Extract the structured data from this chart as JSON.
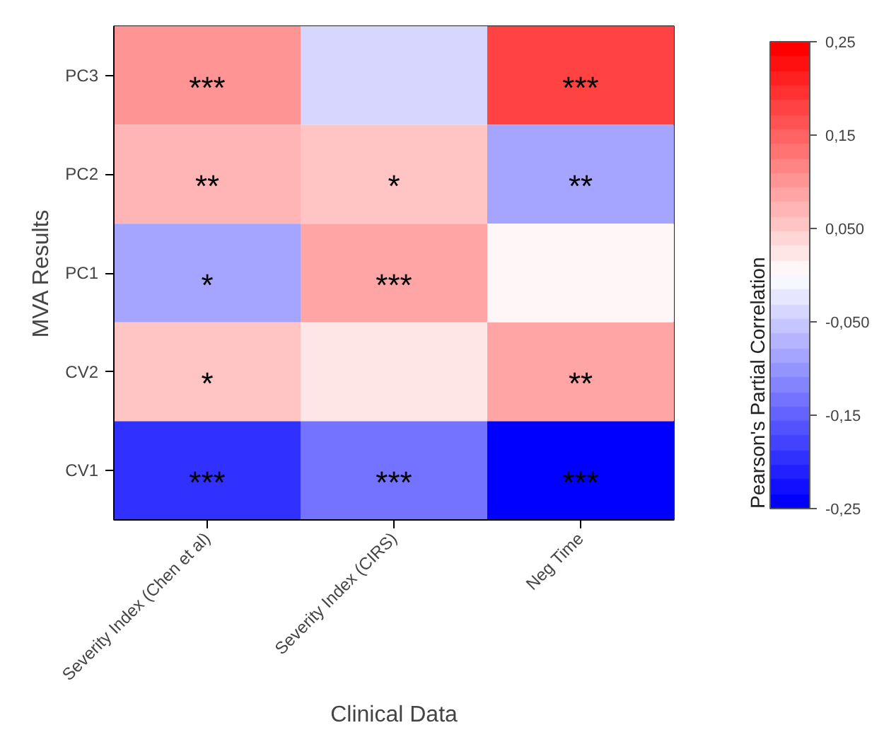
{
  "chart_data": {
    "type": "heatmap",
    "xlabel": "Clinical Data",
    "ylabel": "MVA Results",
    "clabel": "Pearson's Partial Correlation",
    "categories": [
      "Severity Index (Chen et al)",
      "Severity Index (CIRS)",
      "Neg Time"
    ],
    "y_categories": [
      "PC3",
      "PC2",
      "PC1",
      "CV2",
      "CV1"
    ],
    "cells": [
      [
        0.1,
        -0.04,
        0.18
      ],
      [
        0.07,
        0.05,
        -0.08
      ],
      [
        -0.08,
        0.08,
        0.01
      ],
      [
        0.05,
        0.02,
        0.08
      ],
      [
        -0.19,
        -0.13,
        -0.25
      ]
    ],
    "cell_labels": [
      [
        "***",
        null,
        "***"
      ],
      [
        "**",
        "*",
        "**"
      ],
      [
        "*",
        "***",
        null
      ],
      [
        "*",
        null,
        "**"
      ],
      [
        "***",
        "***",
        "***"
      ]
    ],
    "clim": [
      -0.25,
      0.25
    ],
    "cticks": [
      {
        "value": -0.25,
        "label": "-0,25"
      },
      {
        "value": -0.15,
        "label": "-0,15"
      },
      {
        "value": -0.05,
        "label": "-0,050"
      },
      {
        "value": 0.05,
        "label": "0,050"
      },
      {
        "value": 0.15,
        "label": "0,15"
      },
      {
        "value": 0.25,
        "label": "0,25"
      }
    ]
  }
}
